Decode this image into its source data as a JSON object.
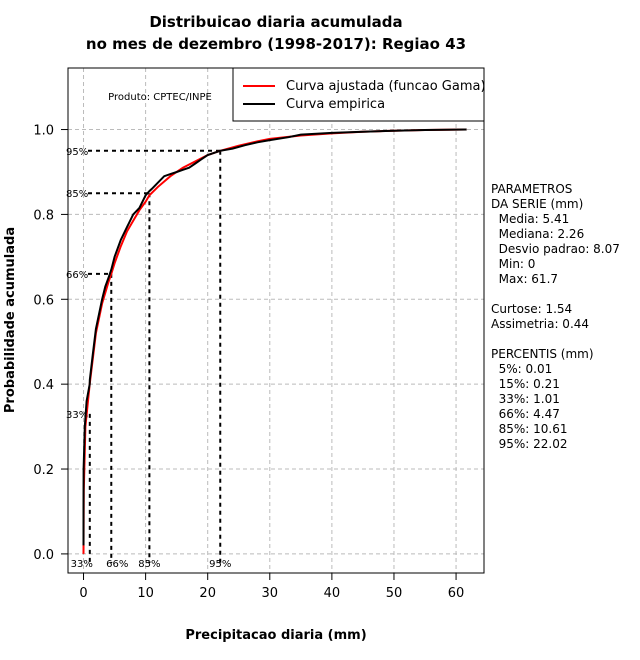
{
  "chart_data": {
    "type": "line",
    "title_line1": "Distribuicao diaria acumulada",
    "title_line2": "no mes de dezembro (1998-2017): Regiao 43",
    "xlabel": "Precipitacao diaria (mm)",
    "ylabel": "Probabilidade acumulada",
    "xlim": [
      -2.5,
      64.5
    ],
    "ylim": [
      -0.045,
      1.145
    ],
    "xticks": [
      0,
      10,
      20,
      30,
      40,
      50,
      60
    ],
    "yticks": [
      0.0,
      0.2,
      0.4,
      0.6,
      0.8,
      1.0
    ],
    "ytick_labels": [
      "0.0",
      "0.2",
      "0.4",
      "0.6",
      "0.8",
      "1.0"
    ],
    "grid": true,
    "product_label": "Produto: CPTEC/INPE",
    "legend": {
      "placement": "top-right",
      "entries": [
        {
          "label": "Curva ajustada (funcao Gama)",
          "color": "#ff0000"
        },
        {
          "label": "Curva empirica",
          "color": "#000000"
        }
      ]
    },
    "series": [
      {
        "name": "Curva ajustada (funcao Gama)",
        "color": "#ff0000",
        "x": [
          0,
          0.05,
          0.3,
          1,
          1.5,
          2,
          3,
          4,
          4.47,
          5,
          6,
          7,
          8,
          9,
          10,
          10.61,
          12,
          14,
          16,
          18,
          20,
          22.02,
          25,
          28,
          30,
          35,
          40,
          45,
          50,
          55,
          61.7
        ],
        "y": [
          0,
          0.15,
          0.3,
          0.4,
          0.46,
          0.52,
          0.59,
          0.64,
          0.66,
          0.685,
          0.725,
          0.76,
          0.785,
          0.81,
          0.83,
          0.845,
          0.865,
          0.89,
          0.91,
          0.925,
          0.94,
          0.95,
          0.962,
          0.972,
          0.978,
          0.986,
          0.991,
          0.995,
          0.997,
          0.999,
          1.0
        ]
      },
      {
        "name": "Curva empirica",
        "color": "#000000",
        "x": [
          0,
          0,
          0.01,
          0.2,
          0.5,
          1,
          1.01,
          1.5,
          2,
          3,
          3.5,
          4,
          4.47,
          5,
          6,
          7,
          8,
          9,
          10,
          10.61,
          11,
          12,
          13,
          14,
          15,
          16,
          17,
          18,
          19,
          20,
          21,
          22.02,
          24,
          26,
          28,
          30,
          33,
          35,
          40,
          45,
          50,
          55,
          61.7
        ],
        "y": [
          0.02,
          0.1,
          0.2,
          0.3,
          0.36,
          0.4,
          0.41,
          0.47,
          0.53,
          0.6,
          0.63,
          0.65,
          0.67,
          0.7,
          0.74,
          0.77,
          0.8,
          0.815,
          0.845,
          0.855,
          0.86,
          0.875,
          0.89,
          0.895,
          0.9,
          0.905,
          0.91,
          0.92,
          0.93,
          0.94,
          0.945,
          0.95,
          0.955,
          0.963,
          0.97,
          0.975,
          0.982,
          0.988,
          0.992,
          0.995,
          0.997,
          0.999,
          1.0
        ]
      }
    ],
    "percentile_markers": [
      {
        "label": "33%",
        "x": 1.01,
        "p": 0.33
      },
      {
        "label": "66%",
        "x": 4.47,
        "p": 0.66
      },
      {
        "label": "85%",
        "x": 10.61,
        "p": 0.85
      },
      {
        "label": "95%",
        "x": 22.02,
        "p": 0.95
      }
    ]
  },
  "side_panel": {
    "params_title1": "PARAMETROS",
    "params_title2": "DA SERIE (mm)",
    "media": "  Media: 5.41",
    "mediana": "  Mediana: 2.26",
    "desvio": "  Desvio padrao: 8.07",
    "min": "  Min: 0",
    "max": "  Max: 61.7",
    "curtose": "Curtose: 1.54",
    "assimetria": "Assimetria: 0.44",
    "percentis_title": "PERCENTIS (mm)",
    "p5": "  5%: 0.01",
    "p15": "  15%: 0.21",
    "p33": "  33%: 1.01",
    "p66": "  66%: 4.47",
    "p85": "  85%: 10.61",
    "p95": "  95%: 22.02"
  }
}
